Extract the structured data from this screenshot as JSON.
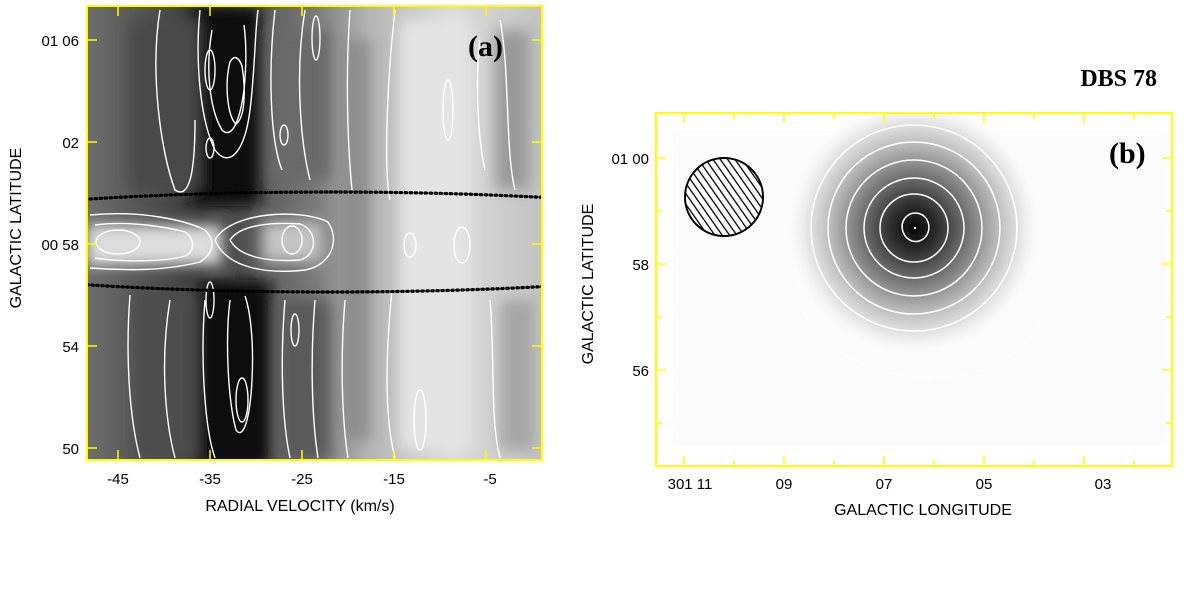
{
  "source_name": "DBS 78",
  "colors": {
    "frame": "#ffff00",
    "contour": "#ffffff",
    "ellipse": "#000000"
  },
  "panel_a": {
    "label": "(a)",
    "xlabel": "RADIAL VELOCITY (km/s)",
    "ylabel": "GALACTIC LATITUDE",
    "x_ticks": [
      "-45",
      "-35",
      "-25",
      "-15",
      "-5"
    ],
    "y_ticks": [
      "01 06",
      "02",
      "00 58",
      "54",
      "50"
    ]
  },
  "panel_b": {
    "label": "(b)",
    "xlabel": "GALACTIC LONGITUDE",
    "ylabel": "GALACTIC LATITUDE",
    "x_ticks": [
      "301 11",
      "09",
      "07",
      "05",
      "03"
    ],
    "y_ticks": [
      "01 00",
      "58",
      "56"
    ],
    "beam_icon": "hatched-circle-beam"
  }
}
